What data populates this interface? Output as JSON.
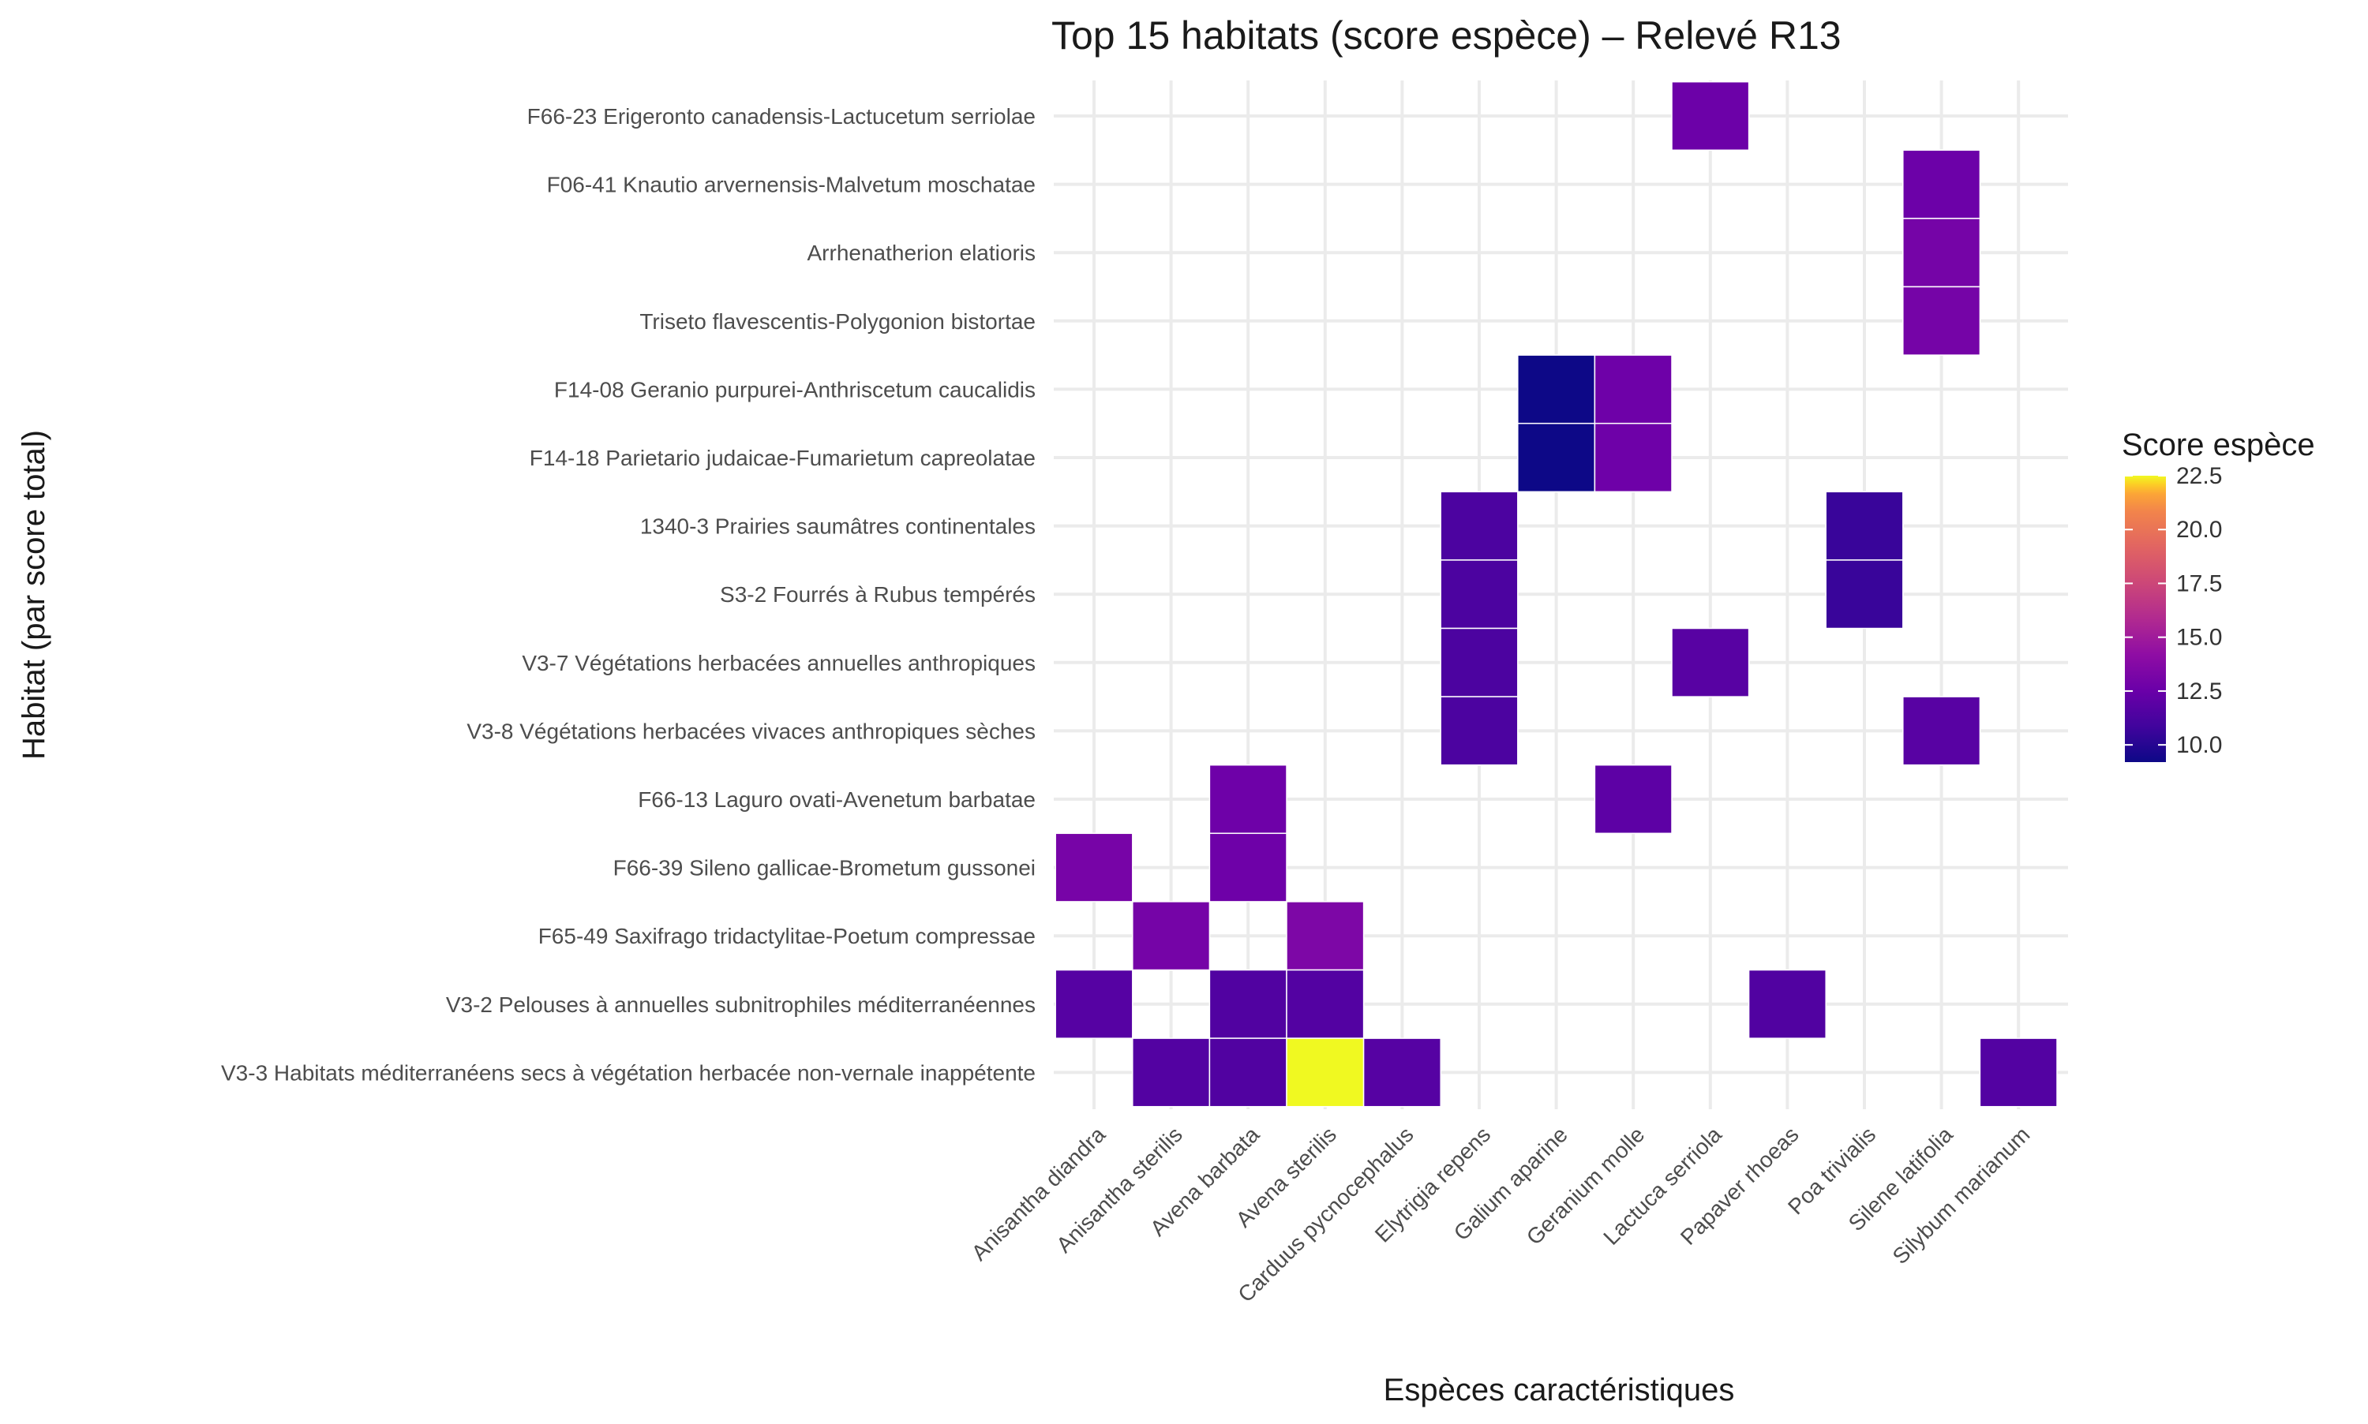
{
  "chart_data": {
    "type": "heatmap",
    "title": "Top 15 habitats (score espèce) – Relevé R13",
    "xlabel": "Espèces caractéristiques",
    "ylabel": "Habitat (par score total)",
    "x_categories": [
      "Anisantha diandra",
      "Anisantha sterilis",
      "Avena barbata",
      "Avena sterilis",
      "Carduus pycnocephalus",
      "Elytrigia repens",
      "Galium aparine",
      "Geranium molle",
      "Lactuca serriola",
      "Papaver rhoeas",
      "Poa trivialis",
      "Silene latifolia",
      "Silybum marianum"
    ],
    "y_categories": [
      "F66-23 Erigeronto canadensis-Lactucetum serriolae",
      "F06-41 Knautio arvernensis-Malvetum moschatae",
      "Arrhenatherion elatioris",
      "Triseto flavescentis-Polygonion bistortae",
      "F14-08 Geranio purpurei-Anthriscetum caucalidis",
      "F14-18 Parietario judaicae-Fumarietum capreolatae",
      "1340-3 Prairies saumâtres continentales",
      "S3-2 Fourrés à Rubus tempérés",
      "V3-7 Végétations herbacées annuelles anthropiques",
      "V3-8 Végétations herbacées vivaces anthropiques sèches",
      "F66-13 Laguro ovati-Avenetum barbatae",
      "F66-39 Sileno gallicae-Brometum gussonei",
      "F65-49 Saxifrago tridactylitae-Poetum compressae",
      "V3-2 Pelouses à annuelles subnitrophiles méditerranéennes",
      "V3-3 Habitats méditerranéens secs à végétation herbacée non-vernale inappétente"
    ],
    "cells": [
      {
        "y": "F66-23 Erigeronto canadensis-Lactucetum serriolae",
        "x": "Lactuca serriola",
        "value": 12.6
      },
      {
        "y": "F06-41 Knautio arvernensis-Malvetum moschatae",
        "x": "Silene latifolia",
        "value": 12.6
      },
      {
        "y": "Arrhenatherion elatioris",
        "x": "Silene latifolia",
        "value": 13.0
      },
      {
        "y": "Triseto flavescentis-Polygonion bistortae",
        "x": "Silene latifolia",
        "value": 13.0
      },
      {
        "y": "F14-08 Geranio purpurei-Anthriscetum caucalidis",
        "x": "Galium aparine",
        "value": 9.2
      },
      {
        "y": "F14-08 Geranio purpurei-Anthriscetum caucalidis",
        "x": "Geranium molle",
        "value": 12.7
      },
      {
        "y": "F14-18 Parietario judaicae-Fumarietum capreolatae",
        "x": "Galium aparine",
        "value": 9.2
      },
      {
        "y": "F14-18 Parietario judaicae-Fumarietum capreolatae",
        "x": "Geranium molle",
        "value": 12.7
      },
      {
        "y": "1340-3 Prairies saumâtres continentales",
        "x": "Elytrigia repens",
        "value": 11.3
      },
      {
        "y": "1340-3 Prairies saumâtres continentales",
        "x": "Poa trivialis",
        "value": 10.6
      },
      {
        "y": "S3-2 Fourrés à Rubus tempérés",
        "x": "Elytrigia repens",
        "value": 11.3
      },
      {
        "y": "S3-2 Fourrés à Rubus tempérés",
        "x": "Poa trivialis",
        "value": 10.6
      },
      {
        "y": "V3-7 Végétations herbacées annuelles anthropiques",
        "x": "Elytrigia repens",
        "value": 11.3
      },
      {
        "y": "V3-7 Végétations herbacées annuelles anthropiques",
        "x": "Lactuca serriola",
        "value": 11.8
      },
      {
        "y": "V3-8 Végétations herbacées vivaces anthropiques sèches",
        "x": "Elytrigia repens",
        "value": 11.3
      },
      {
        "y": "V3-8 Végétations herbacées vivaces anthropiques sèches",
        "x": "Silene latifolia",
        "value": 11.8
      },
      {
        "y": "F66-13 Laguro ovati-Avenetum barbatae",
        "x": "Avena barbata",
        "value": 12.7
      },
      {
        "y": "F66-13 Laguro ovati-Avenetum barbatae",
        "x": "Geranium molle",
        "value": 12.0
      },
      {
        "y": "F66-39 Sileno gallicae-Brometum gussonei",
        "x": "Anisantha diandra",
        "value": 13.1
      },
      {
        "y": "F66-39 Sileno gallicae-Brometum gussonei",
        "x": "Avena barbata",
        "value": 12.7
      },
      {
        "y": "F65-49 Saxifrago tridactylitae-Poetum compressae",
        "x": "Anisantha sterilis",
        "value": 13.0
      },
      {
        "y": "F65-49 Saxifrago tridactylitae-Poetum compressae",
        "x": "Avena sterilis",
        "value": 13.4
      },
      {
        "y": "V3-2 Pelouses à annuelles subnitrophiles méditerranéennes",
        "x": "Anisantha diandra",
        "value": 11.7
      },
      {
        "y": "V3-2 Pelouses à annuelles subnitrophiles méditerranéennes",
        "x": "Avena barbata",
        "value": 11.5
      },
      {
        "y": "V3-2 Pelouses à annuelles subnitrophiles méditerranéennes",
        "x": "Avena sterilis",
        "value": 11.6
      },
      {
        "y": "V3-2 Pelouses à annuelles subnitrophiles méditerranéennes",
        "x": "Papaver rhoeas",
        "value": 11.5
      },
      {
        "y": "V3-3 Habitats méditerranéens secs à végétation herbacée non-vernale inappétente",
        "x": "Anisantha sterilis",
        "value": 11.6
      },
      {
        "y": "V3-3 Habitats méditerranéens secs à végétation herbacée non-vernale inappétente",
        "x": "Avena barbata",
        "value": 11.5
      },
      {
        "y": "V3-3 Habitats méditerranéens secs à végétation herbacée non-vernale inappétente",
        "x": "Avena sterilis",
        "value": 22.5
      },
      {
        "y": "V3-3 Habitats méditerranéens secs à végétation herbacée non-vernale inappétente",
        "x": "Carduus pycnocephalus",
        "value": 11.7
      },
      {
        "y": "V3-3 Habitats méditerranéens secs à végétation herbacée non-vernale inappétente",
        "x": "Silybum marianum",
        "value": 11.6
      }
    ],
    "legend": {
      "title": "Score espèce",
      "placement": "right",
      "min": 9.2,
      "max": 22.5,
      "ticks": [
        10.0,
        12.5,
        15.0,
        17.5,
        20.0,
        22.5
      ],
      "tick_labels": [
        "10.0",
        "12.5",
        "15.0",
        "17.5",
        "20.0",
        "22.5"
      ],
      "colormap": "plasma"
    },
    "grid": true
  }
}
